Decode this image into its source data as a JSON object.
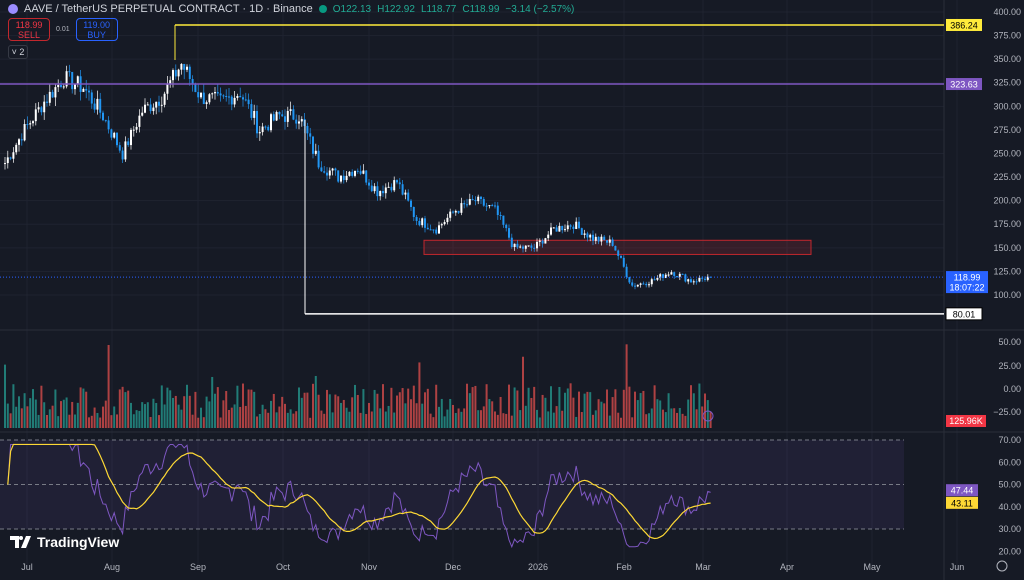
{
  "header": {
    "symbol": "AAVE / TetherUS PERPETUAL CONTRACT · 1D · Binance",
    "open": "O122.13",
    "high": "H122.92",
    "low": "L118.77",
    "close": "C118.99",
    "change": "−3.14 (−2.57%)"
  },
  "trade": {
    "sell_price": "118.99",
    "sell_label": "SELL",
    "spread": "0.01",
    "buy_price": "119.00",
    "buy_label": "BUY"
  },
  "collapse": "2",
  "brand": "TradingView",
  "colors": {
    "up": "#26a69a",
    "down": "#ef5350",
    "candle_blue": "#2196f3",
    "yellow": "#ffeb3b",
    "purple": "#7e57c2",
    "rsi": "#7e57c2",
    "rsi_ma": "#fdd835"
  },
  "chart_data": {
    "type": "candlestick",
    "x_ticks": [
      "Jul",
      "Aug",
      "Sep",
      "Oct",
      "Nov",
      "Dec",
      "2026",
      "Feb",
      "Mar",
      "Apr",
      "May",
      "Jun"
    ],
    "price_ticks": [
      "400.00",
      "375.00",
      "350.00",
      "325.00",
      "300.00",
      "275.00",
      "250.00",
      "225.00",
      "200.00",
      "175.00",
      "150.00",
      "125.00",
      "100.00"
    ],
    "ylim": [
      75,
      405
    ],
    "weekly_closes": [
      240,
      275,
      305,
      330,
      320,
      290,
      250,
      295,
      310,
      345,
      310,
      305,
      315,
      275,
      290,
      290,
      240,
      225,
      235,
      210,
      220,
      180,
      170,
      190,
      200,
      190,
      150,
      150,
      170,
      175,
      160,
      155,
      110,
      115,
      125,
      115,
      119
    ],
    "levels": [
      {
        "price": 386.24,
        "label": "386.24",
        "color": "#ffeb3b"
      },
      {
        "price": 323.63,
        "label": "323.63",
        "color": "#7e57c2"
      },
      {
        "price": 80.01,
        "label": "80.01",
        "color": "#ffffff"
      }
    ],
    "zone": {
      "top": 158,
      "bottom": 143
    },
    "last_price": "118.99",
    "countdown": "18:07:22",
    "volume_ticks": [
      "50.00",
      "25.00",
      "0.00",
      "−25.00"
    ],
    "volume_label": "125.96K",
    "rsi_ticks": [
      "70.00",
      "60.00",
      "50.00",
      "40.00",
      "30.00",
      "20.00"
    ],
    "rsi_value": "47.44",
    "rsi_ma_value": "43.11"
  }
}
